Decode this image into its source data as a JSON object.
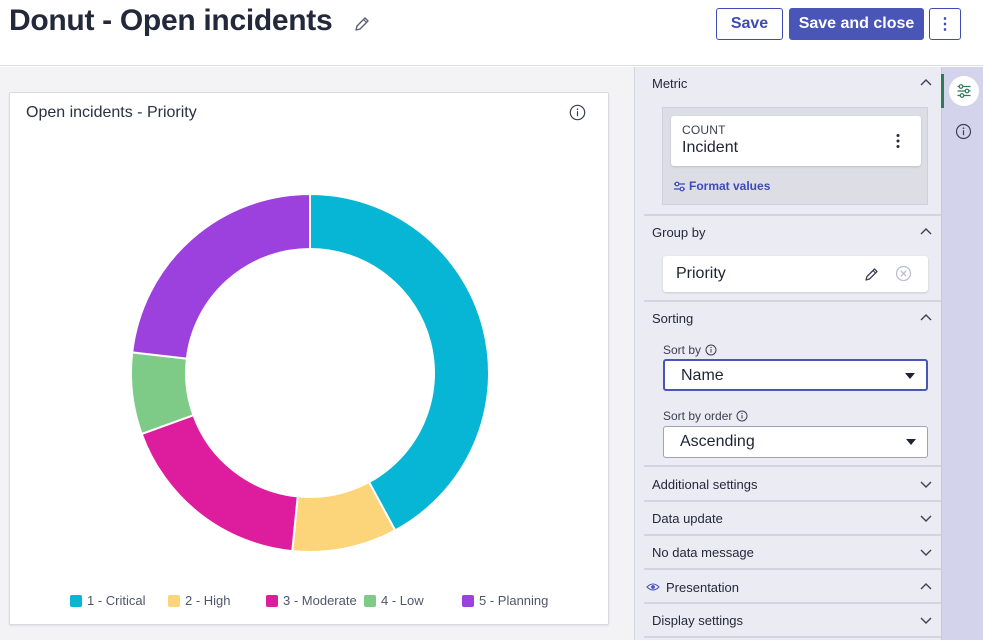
{
  "header": {
    "title": "Donut - Open incidents",
    "save_label": "Save",
    "save_close_label": "Save and close",
    "more_label": "⋮"
  },
  "card": {
    "title": "Open incidents - Priority"
  },
  "chart_data": {
    "type": "pie",
    "title": "Open incidents - Priority",
    "donut": true,
    "categories": [
      "1 - Critical",
      "2 - High",
      "3 - Moderate",
      "4 - Low",
      "5 - Planning"
    ],
    "values": [
      40,
      9,
      17,
      7,
      22
    ],
    "colors": [
      "#06b6d4",
      "#fcd57a",
      "#de1c9e",
      "#7ecb87",
      "#9c40de"
    ],
    "legend_position": "bottom"
  },
  "panel": {
    "metric": {
      "header": "Metric",
      "aggregate": "COUNT",
      "table": "Incident",
      "format_link": "Format values"
    },
    "group_by": {
      "header": "Group by",
      "field": "Priority"
    },
    "sorting": {
      "header": "Sorting",
      "sort_by_label": "Sort by",
      "sort_by_value": "Name",
      "sort_order_label": "Sort by order",
      "sort_order_value": "Ascending"
    },
    "collapsed_sections": {
      "additional": "Additional settings",
      "data_update": "Data update",
      "no_data": "No data message",
      "presentation": "Presentation",
      "display": "Display settings"
    }
  },
  "colors": {
    "accent": "#4a55b8",
    "rail_active": "#2f7a5a"
  }
}
